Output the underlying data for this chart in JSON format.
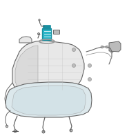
{
  "bg_color": "#ffffff",
  "line_color": "#666666",
  "highlight_color": "#2ab5c8",
  "highlight_color2": "#1a8fa0",
  "gray_light": "#bbbbbb",
  "gray_med": "#999999",
  "gray_dark": "#555555",
  "tank_fill": "#e8e8e8",
  "skid_fill": "#dce8ec"
}
